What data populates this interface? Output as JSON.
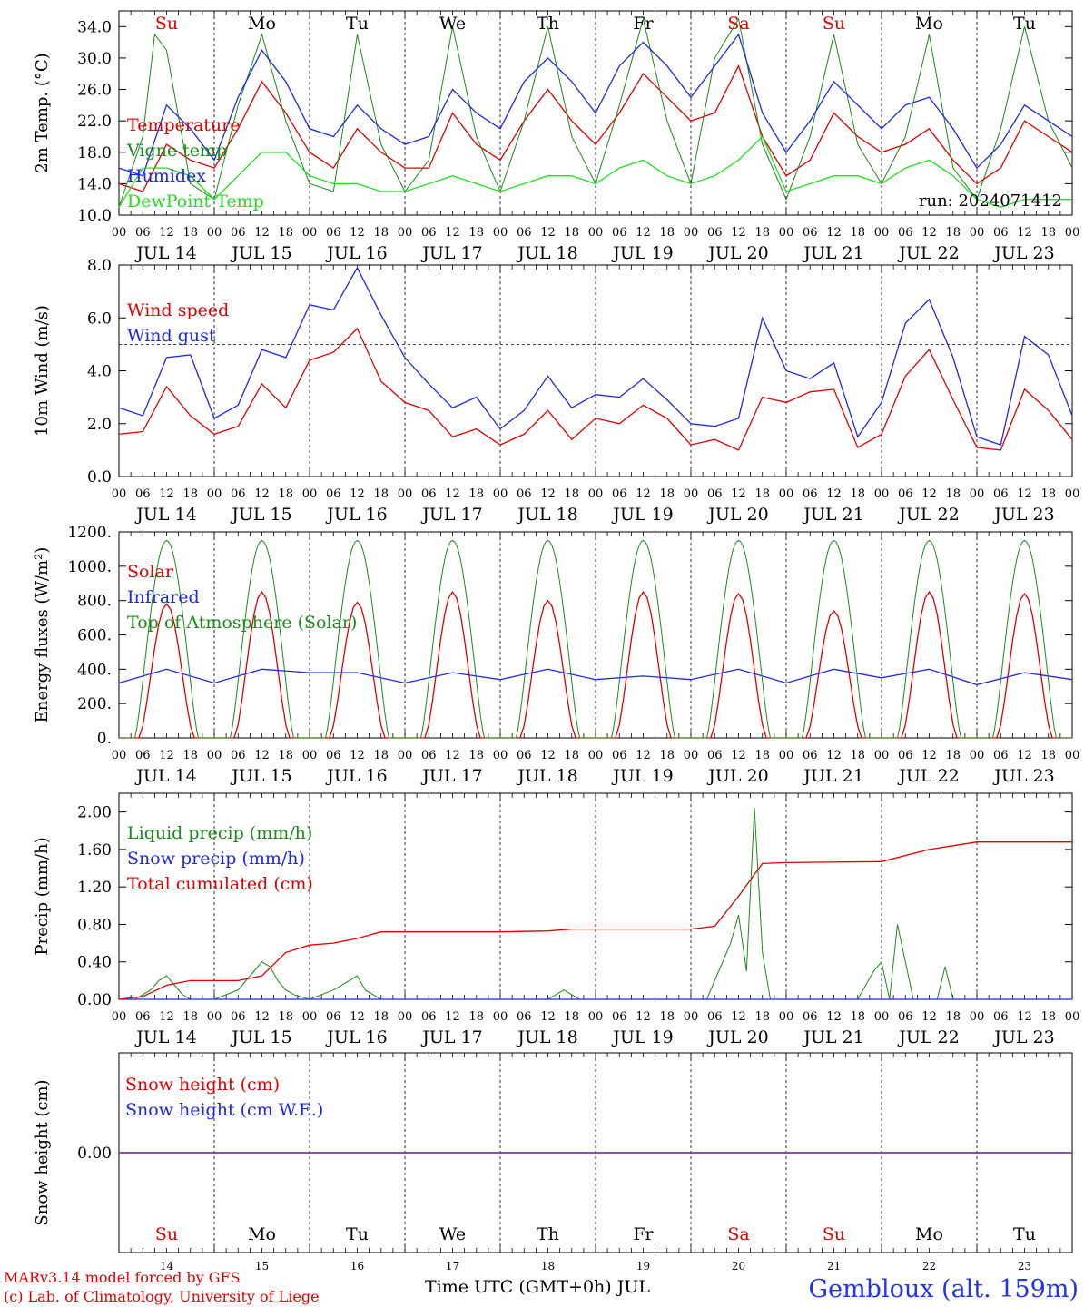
{
  "meta": {
    "run_label": "run: 2024071412",
    "x_title": "Time UTC (GMT+0h) JUL",
    "model_line": "MARv3.14 model forced by GFS",
    "credit_line": "(c) Lab. of Climatology, University of Liege",
    "station": "Gembloux (alt. 159m)"
  },
  "colors": {
    "red": "#e00000",
    "green": "#1a8a1a",
    "blue": "#1e28e6",
    "lightgreen": "#22dd22",
    "purple": "#7a3a9a"
  },
  "days": {
    "names": [
      "Su",
      "Mo",
      "Tu",
      "We",
      "Th",
      "Fr",
      "Sa",
      "Su",
      "Mo",
      "Tu"
    ],
    "weekend": [
      true,
      false,
      false,
      false,
      false,
      false,
      true,
      true,
      false,
      false
    ],
    "dates": [
      "JUL 14",
      "JUL 15",
      "JUL 16",
      "JUL 17",
      "JUL 18",
      "JUL 19",
      "JUL 20",
      "JUL 21",
      "JUL 22",
      "JUL 23"
    ],
    "numbers": [
      "14",
      "15",
      "16",
      "17",
      "18",
      "19",
      "20",
      "21",
      "22",
      "23"
    ]
  },
  "hour_labels": [
    "00",
    "06",
    "12",
    "18"
  ],
  "chart_data": [
    {
      "type": "line",
      "ylabel": "2m Temp. (°C)",
      "ylim": [
        10,
        36
      ],
      "yticks": [
        "10.0",
        "14.0",
        "18.0",
        "22.0",
        "26.0",
        "30.0",
        "34.0"
      ],
      "x_unit": "hours since JUL 14 00 UTC",
      "series": [
        {
          "name": "Temperature",
          "color": "red",
          "x": [
            0,
            6,
            12,
            18,
            24,
            30,
            36,
            42,
            48,
            54,
            60,
            66,
            72,
            78,
            84,
            90,
            96,
            102,
            108,
            114,
            120,
            126,
            132,
            138,
            144,
            150,
            156,
            162,
            168,
            174,
            180,
            186,
            192,
            198,
            204,
            210,
            216,
            222,
            228,
            234,
            240
          ],
          "y": [
            14,
            13,
            19,
            17,
            16,
            21,
            27,
            23,
            18,
            16,
            21,
            18,
            16,
            16,
            23,
            19,
            17,
            22,
            26,
            22,
            19,
            23,
            28,
            25,
            22,
            23,
            29,
            20,
            15,
            17,
            23,
            20,
            18,
            19,
            21,
            17,
            14,
            16,
            22,
            20,
            18
          ]
        },
        {
          "name": "Vigne temp",
          "color": "green",
          "x": [
            0,
            6,
            9,
            12,
            18,
            24,
            30,
            36,
            42,
            48,
            54,
            60,
            66,
            72,
            78,
            84,
            90,
            96,
            102,
            108,
            114,
            120,
            126,
            132,
            138,
            144,
            150,
            156,
            162,
            168,
            174,
            180,
            186,
            192,
            198,
            204,
            210,
            216,
            222,
            228,
            234,
            240
          ],
          "y": [
            11,
            20,
            33,
            31,
            14,
            12,
            24,
            33,
            22,
            14,
            13,
            33,
            19,
            13,
            17,
            34,
            20,
            13,
            22,
            34,
            20,
            14,
            24,
            35,
            22,
            14,
            30,
            35,
            19,
            12,
            20,
            33,
            19,
            14,
            20,
            33,
            16,
            12,
            21,
            34,
            22,
            16
          ]
        },
        {
          "name": "Humidex",
          "color": "blue",
          "x": [
            0,
            6,
            12,
            18,
            24,
            30,
            36,
            42,
            48,
            54,
            60,
            66,
            72,
            78,
            84,
            90,
            96,
            102,
            108,
            114,
            120,
            126,
            132,
            138,
            144,
            150,
            156,
            162,
            168,
            174,
            180,
            186,
            192,
            198,
            204,
            210,
            216,
            222,
            228,
            234,
            240
          ],
          "y": [
            16,
            15,
            24,
            21,
            17,
            25,
            31,
            27,
            21,
            20,
            24,
            21,
            19,
            20,
            26,
            23,
            21,
            27,
            30,
            27,
            23,
            29,
            32,
            29,
            25,
            29,
            33,
            23,
            18,
            22,
            27,
            24,
            21,
            24,
            25,
            21,
            16,
            19,
            24,
            22,
            20
          ]
        },
        {
          "name": "DewPoint Temp",
          "color": "lightgreen",
          "x": [
            0,
            6,
            12,
            18,
            24,
            30,
            36,
            42,
            48,
            54,
            60,
            66,
            72,
            78,
            84,
            90,
            96,
            102,
            108,
            114,
            120,
            126,
            132,
            138,
            144,
            150,
            156,
            162,
            168,
            174,
            180,
            186,
            192,
            198,
            204,
            210,
            216,
            222,
            228,
            234,
            240
          ],
          "y": [
            11,
            16,
            16,
            15,
            12,
            15,
            18,
            18,
            15,
            14,
            14,
            13,
            13,
            14,
            15,
            14,
            13,
            14,
            15,
            15,
            14,
            16,
            17,
            15,
            14,
            15,
            17,
            20,
            13,
            14,
            15,
            15,
            14,
            16,
            17,
            15,
            12,
            11,
            12,
            12,
            12
          ]
        }
      ]
    },
    {
      "type": "line",
      "ylabel": "10m Wind (m/s)",
      "ylim": [
        0,
        8
      ],
      "yticks": [
        "0.0",
        "2.0",
        "4.0",
        "6.0",
        "8.0"
      ],
      "reference_line": 5,
      "x_unit": "hours since JUL 14 00 UTC",
      "series": [
        {
          "name": "Wind speed",
          "color": "red",
          "x": [
            0,
            6,
            12,
            18,
            24,
            30,
            36,
            42,
            48,
            54,
            60,
            66,
            72,
            78,
            84,
            90,
            96,
            102,
            108,
            114,
            120,
            126,
            132,
            138,
            144,
            150,
            156,
            162,
            168,
            174,
            180,
            186,
            192,
            198,
            204,
            210,
            216,
            222,
            228,
            234,
            240
          ],
          "y": [
            1.6,
            1.7,
            3.4,
            2.3,
            1.6,
            1.9,
            3.5,
            2.6,
            4.4,
            4.7,
            5.6,
            3.6,
            2.8,
            2.5,
            1.5,
            1.8,
            1.2,
            1.6,
            2.5,
            1.4,
            2.2,
            2.0,
            2.7,
            2.2,
            1.2,
            1.4,
            1.0,
            3.0,
            2.8,
            3.2,
            3.3,
            1.1,
            1.6,
            3.8,
            4.8,
            2.9,
            1.1,
            1.0,
            3.3,
            2.5,
            1.4
          ]
        },
        {
          "name": "Wind gust",
          "color": "blue",
          "x": [
            0,
            6,
            12,
            18,
            24,
            30,
            36,
            42,
            48,
            54,
            60,
            66,
            72,
            78,
            84,
            90,
            96,
            102,
            108,
            114,
            120,
            126,
            132,
            138,
            144,
            150,
            156,
            162,
            168,
            174,
            180,
            186,
            192,
            198,
            204,
            210,
            216,
            222,
            228,
            234,
            240
          ],
          "y": [
            2.6,
            2.3,
            4.5,
            4.6,
            2.2,
            2.7,
            4.8,
            4.5,
            6.5,
            6.3,
            7.9,
            6.1,
            4.5,
            3.5,
            2.6,
            3.0,
            1.8,
            2.5,
            3.8,
            2.6,
            3.1,
            3.0,
            3.7,
            2.9,
            2.0,
            1.9,
            2.2,
            6.0,
            4.0,
            3.7,
            4.3,
            1.5,
            2.8,
            5.8,
            6.7,
            4.5,
            1.5,
            1.2,
            5.3,
            4.6,
            2.3
          ]
        }
      ]
    },
    {
      "type": "line",
      "ylabel": "Energy fluxes (W/m²)",
      "ylim": [
        0,
        1200
      ],
      "yticks": [
        "0.",
        "200.",
        "400.",
        "600.",
        "800.",
        "1000.",
        "1200."
      ],
      "x_unit": "hours since JUL 14 00 UTC",
      "series": [
        {
          "name": "Solar",
          "color": "red",
          "daily_peaks": [
            780,
            850,
            790,
            850,
            800,
            850,
            840,
            740,
            850,
            840
          ]
        },
        {
          "name": "Infrared",
          "color": "blue",
          "x": [
            0,
            12,
            24,
            36,
            48,
            60,
            72,
            84,
            96,
            108,
            120,
            132,
            144,
            156,
            168,
            180,
            192,
            204,
            216,
            228,
            240
          ],
          "y": [
            320,
            400,
            320,
            400,
            380,
            380,
            320,
            380,
            340,
            400,
            340,
            360,
            340,
            400,
            320,
            400,
            350,
            400,
            310,
            380,
            340
          ]
        },
        {
          "name": "Top of Atmosphere (Solar)",
          "color": "green",
          "daily_peak": 1150
        }
      ]
    },
    {
      "type": "line",
      "ylabel": "Precip (mm/h)",
      "ylim": [
        0,
        2.2
      ],
      "yticks": [
        "0.00",
        "0.40",
        "0.80",
        "1.20",
        "1.60",
        "2.00"
      ],
      "x_unit": "hours since JUL 14 00 UTC",
      "series": [
        {
          "name": "Liquid precip (mm/h)",
          "color": "green",
          "x": [
            0,
            4,
            8,
            10,
            12,
            14,
            16,
            18,
            24,
            30,
            34,
            36,
            38,
            40,
            42,
            44,
            48,
            54,
            58,
            60,
            62,
            66,
            72,
            108,
            112,
            116,
            144,
            148,
            154,
            156,
            158,
            160,
            162,
            164,
            168,
            186,
            190,
            192,
            194,
            196,
            200,
            206,
            208,
            210,
            216,
            240
          ],
          "y": [
            0,
            0,
            0.1,
            0.2,
            0.25,
            0.15,
            0.05,
            0,
            0,
            0.1,
            0.3,
            0.4,
            0.35,
            0.2,
            0.1,
            0.05,
            0,
            0.1,
            0.2,
            0.25,
            0.1,
            0,
            0,
            0,
            0.1,
            0,
            0,
            0,
            0.6,
            0.9,
            0.3,
            2.05,
            0.5,
            0,
            0,
            0,
            0.3,
            0.4,
            0,
            0.8,
            0,
            0,
            0.35,
            0,
            0,
            0
          ]
        },
        {
          "name": "Snow precip (mm/h)",
          "color": "blue",
          "x": [
            0,
            240
          ],
          "y": [
            0,
            0
          ]
        },
        {
          "name": "Total cumulated (cm)",
          "color": "red",
          "x": [
            0,
            6,
            12,
            18,
            24,
            30,
            36,
            42,
            48,
            54,
            60,
            66,
            72,
            96,
            108,
            114,
            120,
            144,
            150,
            156,
            162,
            168,
            192,
            204,
            210,
            216,
            240
          ],
          "y": [
            0,
            0.03,
            0.15,
            0.2,
            0.2,
            0.2,
            0.25,
            0.5,
            0.58,
            0.6,
            0.65,
            0.72,
            0.72,
            0.72,
            0.73,
            0.75,
            0.75,
            0.75,
            0.78,
            1.1,
            1.45,
            1.46,
            1.47,
            1.6,
            1.64,
            1.68,
            1.68
          ]
        }
      ]
    },
    {
      "type": "line",
      "ylabel": "Snow height (cm)",
      "ylim": [
        -1,
        1
      ],
      "yticks": [
        "0.00"
      ],
      "x_unit": "hours since JUL 14 00 UTC",
      "series": [
        {
          "name": "Snow height (cm)",
          "color": "red",
          "x": [
            0,
            240
          ],
          "y": [
            0,
            0
          ]
        },
        {
          "name": "Snow height (cm W.E.)",
          "color": "blue",
          "x": [
            0,
            240
          ],
          "y": [
            0,
            0
          ]
        }
      ]
    }
  ]
}
